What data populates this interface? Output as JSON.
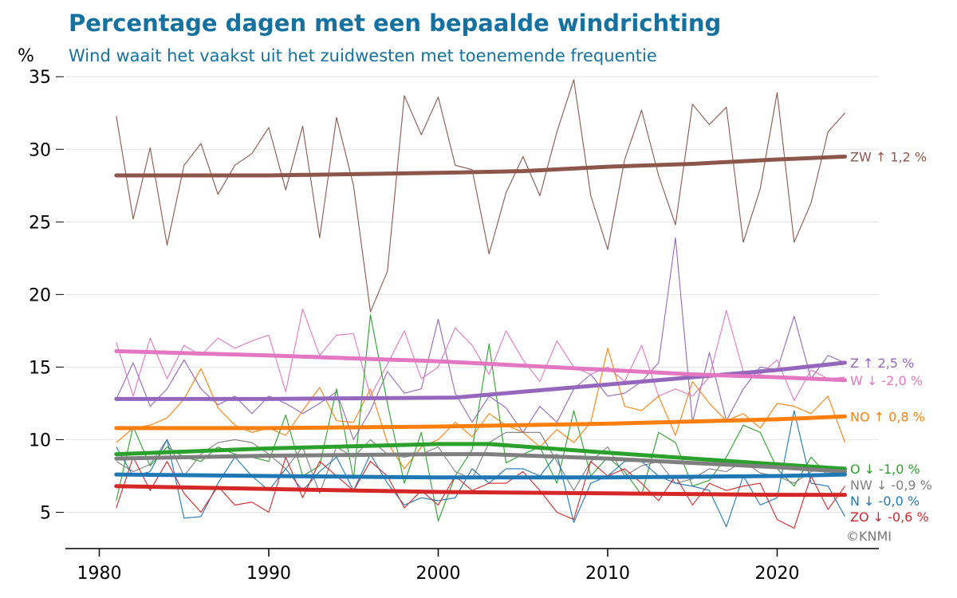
{
  "title": "Percentage dagen met een bepaalde windrichting",
  "subtitle": "Wind waait het vaakst uit het zuidwesten met toenemende frequentie",
  "copyright": "©KNMI",
  "chart_data": {
    "type": "line",
    "ylabel": "%",
    "xlabel": "",
    "xlim": [
      1978,
      2026
    ],
    "ylim": [
      2.5,
      36
    ],
    "xticks": [
      1980,
      1990,
      2000,
      2010,
      2020
    ],
    "yticks": [
      5,
      10,
      15,
      20,
      25,
      30,
      35
    ],
    "grid": "horizontal",
    "x": [
      1981,
      1982,
      1983,
      1984,
      1985,
      1986,
      1987,
      1988,
      1989,
      1990,
      1991,
      1992,
      1993,
      1994,
      1995,
      1996,
      1997,
      1998,
      1999,
      2000,
      2001,
      2002,
      2003,
      2004,
      2005,
      2006,
      2007,
      2008,
      2009,
      2010,
      2011,
      2012,
      2013,
      2014,
      2015,
      2016,
      2017,
      2018,
      2019,
      2020,
      2021,
      2022,
      2023,
      2024
    ],
    "series": [
      {
        "key": "ZW",
        "label": "ZW ↑ 1,2 %",
        "color": "#8c564b",
        "values": [
          32.3,
          25.2,
          30.1,
          23.4,
          28.9,
          30.4,
          26.9,
          28.9,
          29.7,
          31.5,
          27.2,
          31.6,
          23.9,
          32.2,
          27.5,
          18.8,
          21.6,
          33.7,
          31.0,
          33.6,
          28.9,
          28.6,
          22.8,
          27.0,
          29.5,
          26.8,
          31.2,
          34.8,
          26.8,
          23.1,
          29.3,
          32.7,
          28.2,
          24.8,
          33.1,
          31.7,
          32.9,
          23.6,
          27.3,
          33.9,
          23.6,
          26.3,
          31.2,
          32.5
        ],
        "trend": [
          [
            1981,
            28.2
          ],
          [
            1990,
            28.2
          ],
          [
            2001,
            28.4
          ],
          [
            2005,
            28.5
          ],
          [
            2010,
            28.8
          ],
          [
            2015,
            29.0
          ],
          [
            2020,
            29.3
          ],
          [
            2024,
            29.5
          ]
        ]
      },
      {
        "key": "Z",
        "label": "Z ↑ 2,5 %",
        "color": "#9467bd",
        "values": [
          12.8,
          15.3,
          12.3,
          13.5,
          15.5,
          13.5,
          12.4,
          13.0,
          11.8,
          13.0,
          12.5,
          11.8,
          12.5,
          13.3,
          10.0,
          12.0,
          14.7,
          13.2,
          13.5,
          18.3,
          13.2,
          11.2,
          13.0,
          12.2,
          10.5,
          12.3,
          11.2,
          13.5,
          14.5,
          13.0,
          13.2,
          14.0,
          15.3,
          23.9,
          11.2,
          16.0,
          11.3,
          13.5,
          15.0,
          14.8,
          18.5,
          14.2,
          15.8,
          15.3
        ],
        "trend": [
          [
            1981,
            12.8
          ],
          [
            1990,
            12.8
          ],
          [
            2001,
            12.9
          ],
          [
            2005,
            13.3
          ],
          [
            2010,
            13.8
          ],
          [
            2015,
            14.3
          ],
          [
            2020,
            14.8
          ],
          [
            2024,
            15.3
          ]
        ]
      },
      {
        "key": "W",
        "label": "W ↓ -2,0 %",
        "color": "#e377c2",
        "values": [
          16.7,
          13.0,
          17.0,
          14.2,
          16.5,
          15.8,
          17.0,
          16.3,
          16.8,
          17.2,
          13.3,
          19.0,
          15.8,
          17.2,
          17.3,
          13.0,
          15.2,
          17.5,
          14.2,
          15.0,
          17.7,
          16.5,
          14.5,
          17.5,
          15.5,
          14.0,
          16.8,
          15.0,
          14.5,
          15.0,
          14.0,
          16.5,
          13.0,
          13.5,
          13.0,
          14.3,
          18.9,
          14.7,
          14.5,
          15.5,
          12.7,
          14.8,
          14.2,
          14.3
        ],
        "trend": [
          [
            1981,
            16.1
          ],
          [
            1990,
            15.8
          ],
          [
            2000,
            15.4
          ],
          [
            2010,
            14.8
          ],
          [
            2015,
            14.5
          ],
          [
            2020,
            14.3
          ],
          [
            2024,
            14.1
          ]
        ]
      },
      {
        "key": "NO",
        "label": "NO ↑ 0,8 %",
        "color": "#ff7f0e",
        "values": [
          9.8,
          10.8,
          11.0,
          11.5,
          12.8,
          14.9,
          12.2,
          11.0,
          10.5,
          10.8,
          10.3,
          12.0,
          13.6,
          11.3,
          11.2,
          13.5,
          9.8,
          8.0,
          9.5,
          10.0,
          11.2,
          10.2,
          11.8,
          11.0,
          10.5,
          9.5,
          10.7,
          9.8,
          11.2,
          16.3,
          12.3,
          12.0,
          13.0,
          10.3,
          14.0,
          12.5,
          11.3,
          11.8,
          10.8,
          12.5,
          12.3,
          11.8,
          13.0,
          9.8
        ],
        "trend": [
          [
            1981,
            10.8
          ],
          [
            1990,
            10.8
          ],
          [
            2000,
            10.9
          ],
          [
            2010,
            11.1
          ],
          [
            2020,
            11.4
          ],
          [
            2024,
            11.6
          ]
        ]
      },
      {
        "key": "O",
        "label": "O ↓ -1,0 %",
        "color": "#2ca02c",
        "values": [
          5.8,
          10.9,
          8.2,
          9.5,
          8.8,
          8.5,
          9.5,
          9.0,
          8.8,
          8.5,
          11.7,
          7.5,
          8.2,
          13.5,
          7.3,
          18.6,
          12.5,
          7.0,
          10.5,
          4.4,
          7.5,
          9.3,
          16.6,
          8.4,
          9.0,
          9.5,
          7.0,
          12.0,
          7.5,
          8.8,
          7.8,
          6.2,
          10.5,
          9.8,
          6.8,
          7.2,
          8.8,
          11.0,
          10.5,
          8.0,
          6.8,
          8.8,
          7.5,
          7.8
        ],
        "trend": [
          [
            1981,
            9.0
          ],
          [
            1990,
            9.4
          ],
          [
            2000,
            9.7
          ],
          [
            2003,
            9.7
          ],
          [
            2010,
            9.1
          ],
          [
            2015,
            8.7
          ],
          [
            2020,
            8.3
          ],
          [
            2024,
            8.0
          ]
        ]
      },
      {
        "key": "NW",
        "label": "NW ↓ -0,9 %",
        "color": "#7f7f7f",
        "values": [
          8.5,
          7.8,
          8.3,
          10.0,
          7.5,
          9.0,
          9.8,
          10.0,
          9.8,
          9.0,
          8.0,
          9.5,
          6.3,
          9.5,
          8.8,
          10.0,
          9.0,
          8.8,
          9.0,
          9.5,
          7.8,
          7.3,
          9.8,
          10.5,
          10.5,
          10.5,
          8.5,
          6.5,
          8.5,
          9.5,
          7.5,
          8.2,
          8.5,
          7.0,
          7.3,
          8.0,
          7.8,
          8.5,
          7.7,
          7.5,
          7.0,
          7.8,
          8.0,
          7.5
        ],
        "trend": [
          [
            1981,
            8.7
          ],
          [
            1990,
            8.9
          ],
          [
            2000,
            9.0
          ],
          [
            2003,
            9.0
          ],
          [
            2010,
            8.7
          ],
          [
            2015,
            8.4
          ],
          [
            2020,
            8.1
          ],
          [
            2024,
            7.8
          ]
        ]
      },
      {
        "key": "N",
        "label": "N ↓ -0,0 %",
        "color": "#1f77b4",
        "values": [
          9.5,
          7.5,
          7.8,
          10.0,
          4.6,
          4.7,
          7.0,
          8.8,
          7.5,
          6.5,
          8.0,
          6.5,
          7.8,
          8.8,
          6.5,
          9.0,
          7.0,
          5.5,
          6.0,
          5.8,
          6.0,
          8.0,
          7.0,
          8.0,
          8.0,
          7.5,
          9.0,
          4.3,
          7.0,
          7.5,
          8.5,
          8.5,
          7.5,
          7.0,
          6.8,
          6.5,
          4.0,
          7.5,
          5.5,
          6.0,
          12.0,
          7.0,
          6.8,
          4.7
        ],
        "trend": [
          [
            1981,
            7.6
          ],
          [
            1990,
            7.5
          ],
          [
            2000,
            7.4
          ],
          [
            2010,
            7.4
          ],
          [
            2020,
            7.5
          ],
          [
            2024,
            7.6
          ]
        ]
      },
      {
        "key": "ZO",
        "label": "ZO ↓ -0,6 %",
        "color": "#d62728",
        "values": [
          5.3,
          8.8,
          6.5,
          8.5,
          6.3,
          5.0,
          6.8,
          5.5,
          5.7,
          5.0,
          8.8,
          6.0,
          8.5,
          7.5,
          6.5,
          8.5,
          7.5,
          5.3,
          6.5,
          5.5,
          7.5,
          6.5,
          7.0,
          7.0,
          7.8,
          6.5,
          5.0,
          4.5,
          8.5,
          7.5,
          8.0,
          7.0,
          5.8,
          7.5,
          5.5,
          7.0,
          6.5,
          6.8,
          7.0,
          4.5,
          3.9,
          7.5,
          5.2,
          6.8
        ],
        "trend": [
          [
            1981,
            6.8
          ],
          [
            1990,
            6.6
          ],
          [
            2000,
            6.4
          ],
          [
            2010,
            6.3
          ],
          [
            2020,
            6.2
          ],
          [
            2024,
            6.2
          ]
        ]
      }
    ]
  }
}
